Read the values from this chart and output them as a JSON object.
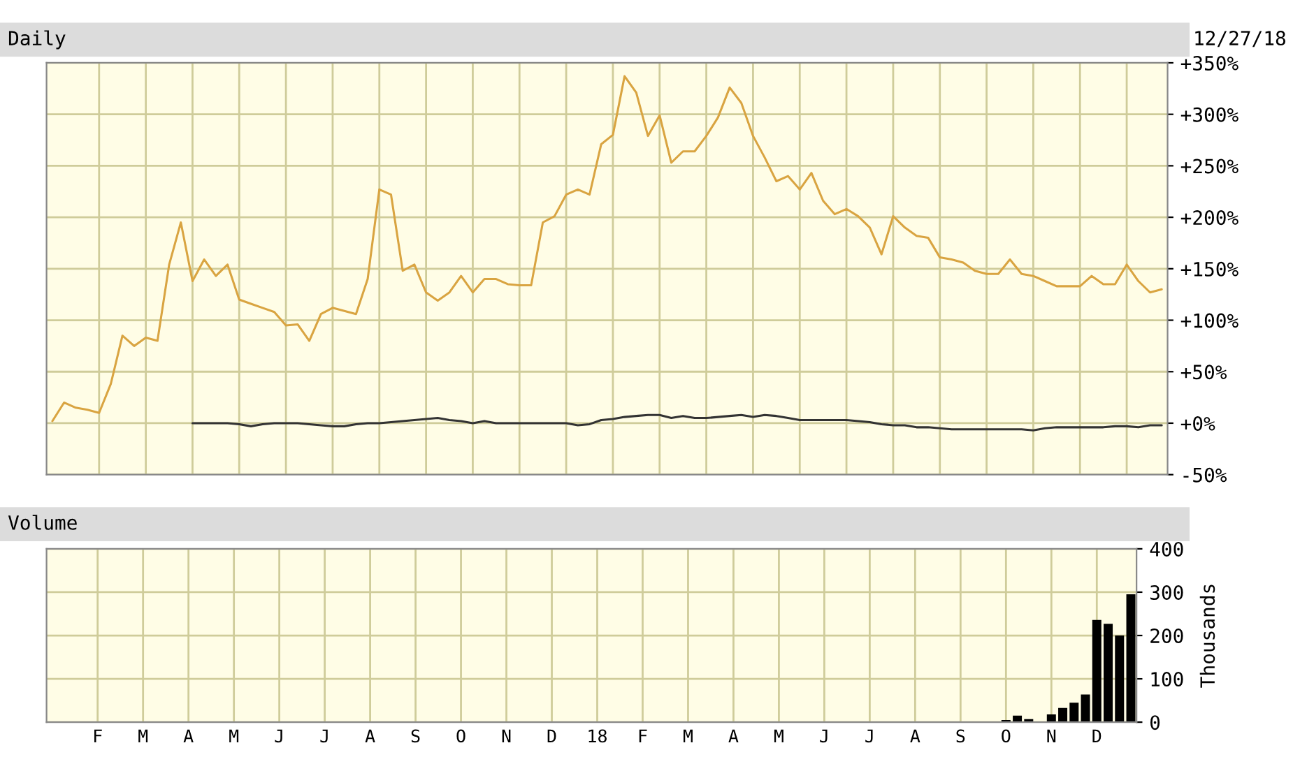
{
  "chart_data": [
    {
      "type": "line",
      "title": "Daily",
      "subtitle": "12/27/18",
      "categories": [
        null,
        null,
        null,
        null,
        null,
        null,
        null,
        null,
        null,
        null,
        null,
        null,
        null,
        null,
        null,
        null,
        null,
        null,
        null,
        null,
        null,
        null,
        null,
        null,
        null,
        null,
        null,
        null,
        null,
        null,
        null,
        null,
        null,
        null,
        null,
        null,
        null,
        null,
        null,
        null,
        null,
        null,
        null,
        null,
        null,
        null,
        null,
        null,
        null,
        null,
        null,
        null,
        null,
        null,
        null,
        null,
        null,
        null,
        null,
        null,
        null,
        null,
        null,
        null,
        null,
        null,
        null,
        null,
        null,
        null,
        null,
        null,
        null,
        null,
        null,
        null,
        null,
        null,
        null,
        null,
        null,
        null,
        null,
        null,
        null,
        null,
        null,
        null,
        null,
        null,
        null,
        null,
        null,
        null,
        null,
        null
      ],
      "ylim": [
        -50,
        350
      ],
      "yticks": [
        {
          "value": -50,
          "label": "-50%"
        },
        {
          "value": 0,
          "label": "+0%"
        },
        {
          "value": 50,
          "label": "+50%"
        },
        {
          "value": 100,
          "label": "+100%"
        },
        {
          "value": 150,
          "label": "+150%"
        },
        {
          "value": 200,
          "label": "+200%"
        },
        {
          "value": 250,
          "label": "+250%"
        },
        {
          "value": 300,
          "label": "+300%"
        },
        {
          "value": 350,
          "label": "+350%"
        }
      ],
      "grid": true,
      "tick_labels": "y",
      "series": [
        {
          "color": "#d9a441",
          "values": [
            2,
            20,
            15,
            13,
            10,
            38,
            85,
            75,
            83,
            80,
            154,
            195,
            138,
            159,
            143,
            154,
            120,
            116,
            112,
            108,
            95,
            96,
            80,
            106,
            112,
            109,
            106,
            140,
            227,
            222,
            148,
            154,
            127,
            119,
            127,
            143,
            127,
            140,
            140,
            135,
            134,
            134,
            195,
            201,
            222,
            227,
            222,
            271,
            280,
            337,
            321,
            279,
            299,
            253,
            264,
            264,
            279,
            297,
            326,
            311,
            279,
            258,
            235,
            240,
            227,
            243,
            216,
            203,
            208,
            201,
            190,
            164,
            201,
            190,
            182,
            180,
            161,
            159,
            156,
            148,
            145,
            145,
            159,
            145,
            143,
            138,
            133,
            133,
            133,
            143,
            135,
            135,
            154,
            138,
            127,
            130
          ]
        },
        {
          "color": "#333333",
          "values": [
            null,
            null,
            null,
            null,
            null,
            null,
            null,
            null,
            null,
            null,
            null,
            null,
            0,
            0,
            0,
            0,
            -1,
            -3,
            -1,
            0,
            0,
            0,
            -1,
            -2,
            -3,
            -3,
            -1,
            0,
            0,
            1,
            2,
            3,
            4,
            5,
            3,
            2,
            0,
            2,
            0,
            0,
            0,
            0,
            0,
            0,
            0,
            -2,
            -1,
            3,
            4,
            6,
            7,
            8,
            8,
            5,
            7,
            5,
            5,
            6,
            7,
            8,
            6,
            8,
            7,
            5,
            3,
            3,
            3,
            3,
            3,
            2,
            1,
            -1,
            -2,
            -2,
            -4,
            -4,
            -5,
            -6,
            -6,
            -6,
            -6,
            -6,
            -6,
            -6,
            -7,
            -5,
            -4,
            -4,
            -4,
            -4,
            -4,
            -3,
            -3,
            -4,
            -2,
            -2
          ]
        }
      ]
    },
    {
      "type": "bar",
      "title": "Volume",
      "ylabel": "Thousands",
      "categories": [
        null,
        null,
        null,
        null,
        "F",
        null,
        null,
        null,
        "M",
        null,
        null,
        null,
        "A",
        null,
        null,
        null,
        "M",
        null,
        null,
        null,
        "J",
        null,
        null,
        null,
        "J",
        null,
        null,
        null,
        "A",
        null,
        null,
        null,
        "S",
        null,
        null,
        null,
        "O",
        null,
        null,
        null,
        "N",
        null,
        null,
        null,
        "D",
        null,
        null,
        null,
        "18",
        null,
        null,
        null,
        "F",
        null,
        null,
        null,
        "M",
        null,
        null,
        null,
        "A",
        null,
        null,
        null,
        "M",
        null,
        null,
        null,
        "J",
        null,
        null,
        null,
        "J",
        null,
        null,
        null,
        "A",
        null,
        null,
        null,
        "S",
        null,
        null,
        null,
        "O",
        null,
        null,
        null,
        "N",
        null,
        null,
        null,
        "D",
        null,
        null,
        null
      ],
      "ylim": [
        0,
        400
      ],
      "yticks": [
        0,
        100,
        200,
        300,
        400
      ],
      "grid": true,
      "series": [
        {
          "color": "#000000",
          "values": [
            0,
            0,
            0,
            0,
            0,
            0,
            0,
            0,
            0,
            0,
            0,
            0,
            0,
            0,
            0,
            0,
            0,
            0,
            0,
            0,
            0,
            0,
            0,
            0,
            0,
            0,
            0,
            0,
            0,
            0,
            0,
            0,
            0,
            0,
            0,
            0,
            0,
            0,
            0,
            0,
            0,
            0,
            0,
            0,
            0,
            0,
            0,
            0,
            0,
            0,
            0,
            0,
            0,
            0,
            0,
            0,
            0,
            0,
            0,
            0,
            0,
            0,
            0,
            0,
            0,
            0,
            0,
            0,
            0,
            0,
            0,
            0,
            0,
            0,
            0,
            0,
            0,
            0,
            0,
            0,
            0,
            0,
            0,
            0,
            5,
            15,
            7,
            0,
            18,
            33,
            45,
            64,
            236,
            227,
            200,
            295
          ]
        }
      ]
    }
  ]
}
